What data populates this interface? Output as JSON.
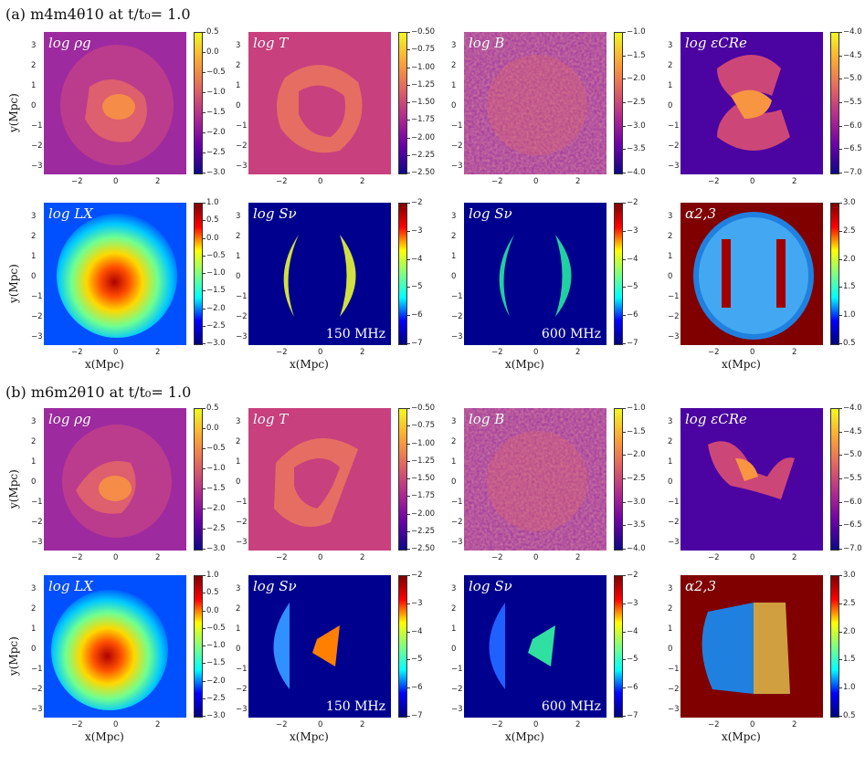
{
  "figure": {
    "section_a_title": "(a) m4m4θ10 at t/t₀= 1.0",
    "section_b_title": "(b) m6m2θ10 at t/t₀= 1.0",
    "x_axis_label": "x(Mpc)",
    "y_axis_label": "y(Mpc)",
    "x_ticks": [
      "−2",
      "0",
      "2"
    ],
    "y_ticks": [
      "3",
      "2",
      "1",
      "0",
      "−1",
      "−2",
      "−3"
    ],
    "panel_labels": {
      "rho": "log ρg",
      "T": "log T",
      "B": "log B",
      "cre": "log εCRe",
      "Lx": "log LX",
      "S1": "log Sν",
      "S2": "log Sν",
      "alpha": "α2,3"
    },
    "freq_labels": [
      "150 MHz",
      "600 MHz"
    ],
    "colorbars": {
      "rho": [
        "0.5",
        "0.0",
        "−0.5",
        "−1.0",
        "−1.5",
        "−2.0",
        "−2.5",
        "−3.0"
      ],
      "T": [
        "−0.50",
        "−0.75",
        "−1.00",
        "−1.25",
        "−1.50",
        "−1.75",
        "−2.00",
        "−2.25",
        "−2.50"
      ],
      "B": [
        "−1.0",
        "−1.5",
        "−2.0",
        "−2.5",
        "−3.0",
        "−3.5",
        "−4.0"
      ],
      "cre": [
        "−4.0",
        "−4.5",
        "−5.0",
        "−5.5",
        "−6.0",
        "−6.5",
        "−7.0"
      ],
      "Lx": [
        "1.0",
        "0.5",
        "0.0",
        "−0.5",
        "−1.0",
        "−1.5",
        "−2.0",
        "−2.5",
        "−3.0"
      ],
      "S": [
        "−2",
        "−3",
        "−4",
        "−5",
        "−6",
        "−7"
      ],
      "alpha": [
        "3.0",
        "2.5",
        "2.0",
        "1.5",
        "1.0",
        "0.5"
      ]
    },
    "colors": {
      "plasma_bg": "#9c2d9e",
      "jet_bg": "#0000a0",
      "alpha_bg": "#800000"
    }
  }
}
